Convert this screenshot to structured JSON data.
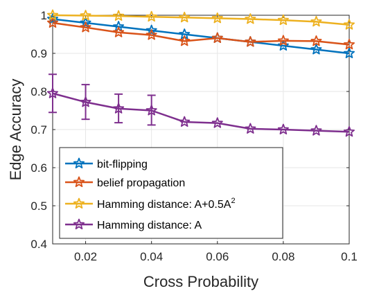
{
  "chart_data": {
    "type": "line",
    "title": "",
    "xlabel": "Cross Probability",
    "ylabel": "Edge Accuracy",
    "xlim": [
      0.01,
      0.1
    ],
    "ylim": [
      0.4,
      1.0
    ],
    "xticks": [
      0.02,
      0.04,
      0.06,
      0.08,
      0.1
    ],
    "yticks": [
      0.4,
      0.5,
      0.6,
      0.7,
      0.8,
      0.9,
      1
    ],
    "xtick_labels": [
      "0.02",
      "0.04",
      "0.06",
      "0.08",
      "0.1"
    ],
    "ytick_labels": [
      "0.4",
      "0.5",
      "0.6",
      "0.7",
      "0.8",
      "0.9",
      "1"
    ],
    "grid": true,
    "legend_position": "bottom-left",
    "x": [
      0.01,
      0.02,
      0.03,
      0.04,
      0.05,
      0.06,
      0.07,
      0.08,
      0.09,
      0.1
    ],
    "series": [
      {
        "name": "bit-flipping",
        "color": "#0072BD",
        "marker": "star",
        "values": [
          0.99,
          0.98,
          0.97,
          0.96,
          0.95,
          0.94,
          0.93,
          0.92,
          0.91,
          0.9
        ]
      },
      {
        "name": "belief propagation",
        "color": "#D95319",
        "marker": "star",
        "values": [
          0.98,
          0.968,
          0.955,
          0.948,
          0.932,
          0.94,
          0.93,
          0.933,
          0.932,
          0.923
        ]
      },
      {
        "name": "Hamming distance: A+0.5A",
        "name_superscript": "2",
        "color": "#EDB120",
        "marker": "star",
        "values": [
          1.0,
          0.999,
          0.998,
          0.996,
          0.994,
          0.992,
          0.99,
          0.987,
          0.983,
          0.975
        ]
      },
      {
        "name": "Hamming distance: A",
        "color": "#7E2F8E",
        "marker": "star",
        "values": [
          0.795,
          0.772,
          0.755,
          0.75,
          0.72,
          0.717,
          0.702,
          0.7,
          0.697,
          0.694
        ],
        "error_bars": [
          {
            "x": 0.01,
            "low": 0.745,
            "high": 0.845
          },
          {
            "x": 0.02,
            "low": 0.727,
            "high": 0.818
          },
          {
            "x": 0.03,
            "low": 0.718,
            "high": 0.793
          },
          {
            "x": 0.04,
            "low": 0.712,
            "high": 0.79
          }
        ]
      }
    ]
  }
}
